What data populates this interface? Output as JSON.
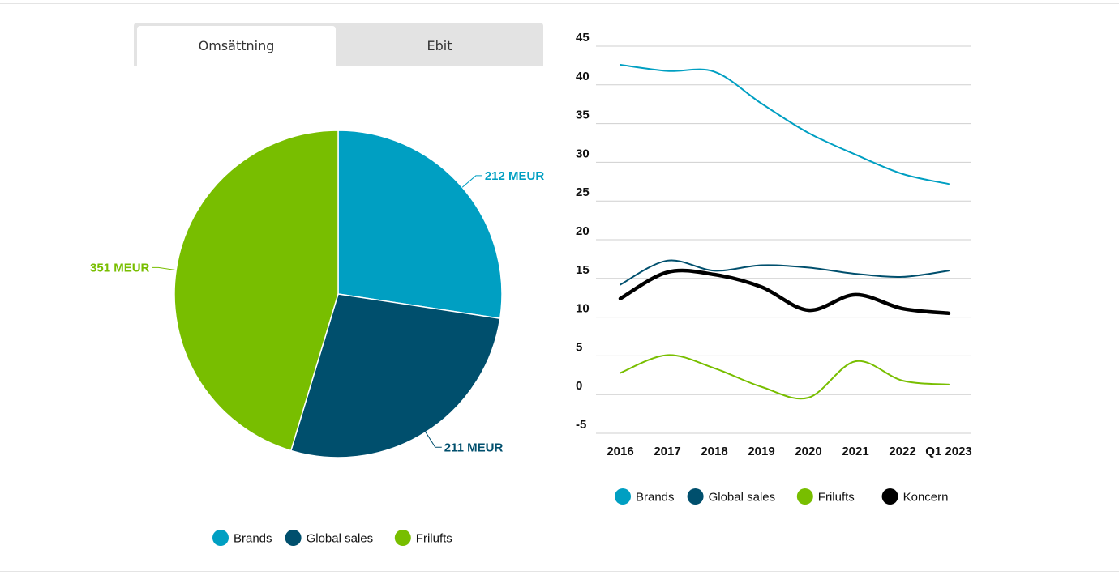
{
  "tabs": [
    {
      "label": "Omsättning",
      "active": true
    },
    {
      "label": "Ebit",
      "active": false
    }
  ],
  "colors": {
    "brands": "#009fc2",
    "global_sales": "#004f6d",
    "frilufts": "#78be00",
    "koncern": "#000000"
  },
  "chart_data": [
    {
      "type": "pie",
      "slices": [
        {
          "name": "Brands",
          "value": 212,
          "label": "212 MEUR",
          "color": "#009fc2"
        },
        {
          "name": "Global sales",
          "value": 211,
          "label": "211 MEUR",
          "color": "#004f6d"
        },
        {
          "name": "Frilufts",
          "value": 351,
          "label": "351 MEUR",
          "color": "#78be00"
        }
      ],
      "legend": [
        "Brands",
        "Global sales",
        "Frilufts"
      ],
      "legend_position": "bottom"
    },
    {
      "type": "line",
      "categories": [
        "2016",
        "2017",
        "2018",
        "2019",
        "2020",
        "2021",
        "2022",
        "Q1 2023"
      ],
      "series": [
        {
          "name": "Brands",
          "color": "#009fc2",
          "values": [
            42.6,
            41.8,
            41.7,
            37.6,
            33.8,
            31.0,
            28.5,
            27.2
          ]
        },
        {
          "name": "Global sales",
          "color": "#004f6d",
          "values": [
            14.2,
            17.3,
            16.0,
            16.7,
            16.4,
            15.6,
            15.2,
            16.0
          ]
        },
        {
          "name": "Frilufts",
          "color": "#78be00",
          "values": [
            2.8,
            5.1,
            3.4,
            1.0,
            -0.4,
            4.3,
            1.8,
            1.3
          ]
        },
        {
          "name": "Koncern",
          "color": "#000000",
          "values": [
            12.4,
            15.8,
            15.5,
            13.9,
            10.9,
            12.9,
            11.1,
            10.5
          ]
        }
      ],
      "yticks": [
        45,
        40,
        35,
        30,
        25,
        20,
        15,
        10,
        5,
        0,
        -5
      ],
      "ylim": [
        -5,
        45
      ],
      "grid": true,
      "legend": [
        "Brands",
        "Global sales",
        "Frilufts",
        "Koncern"
      ],
      "legend_position": "bottom"
    }
  ]
}
